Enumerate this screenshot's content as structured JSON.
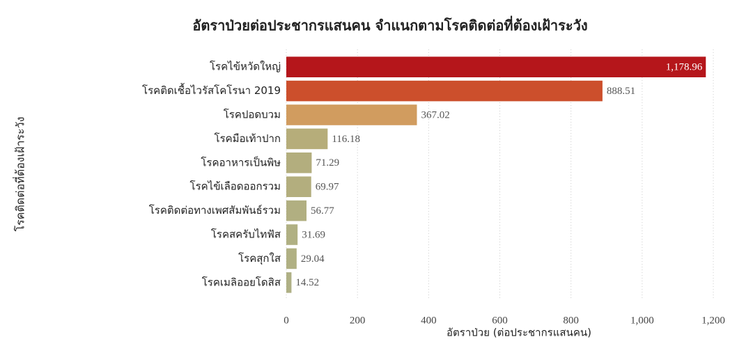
{
  "chart_data": {
    "type": "barh",
    "title": "อัตราป่วยต่อประชากรแสนคน จำแนกตามโรคติดต่อที่ต้องเฝ้าระวัง",
    "xlabel": "อัตราป่วย (ต่อประชากรแสนคน)",
    "ylabel": "โรคติดต่อที่ต้องเฝ้าระวัง",
    "categories": [
      "โรคไข้หวัดใหญ่",
      "โรคติดเชื้อไวรัสโคโรนา 2019",
      "โรคปอดบวม",
      "โรคมือเท้าปาก",
      "โรคอาหารเป็นพิษ",
      "โรคไข้เลือดออกรวม",
      "โรคติดต่อทางเพศสัมพันธ์รวม",
      "โรคสครับไทฟัส",
      "โรคสุกใส",
      "โรคเมลิออยโดสิส"
    ],
    "values": [
      1178.96,
      888.51,
      367.02,
      116.18,
      71.29,
      69.97,
      56.77,
      31.69,
      29.04,
      14.52
    ],
    "value_labels": [
      "1,178.96",
      "888.51",
      "367.02",
      "116.18",
      "71.29",
      "69.97",
      "56.77",
      "31.69",
      "29.04",
      "14.52"
    ],
    "colors": [
      "#b5161b",
      "#cc4f2c",
      "#d19c5f",
      "#b6ad7a",
      "#b3ae7e",
      "#b3ae7e",
      "#b1af81",
      "#b0b083",
      "#b0b083",
      "#afb085"
    ],
    "xlim": [
      0,
      1200
    ],
    "xticks": [
      0,
      200,
      400,
      600,
      800,
      {
        "value": 1000,
        "label": "1,000"
      },
      {
        "value": 1200,
        "label": "1,200"
      }
    ],
    "grid": true
  }
}
